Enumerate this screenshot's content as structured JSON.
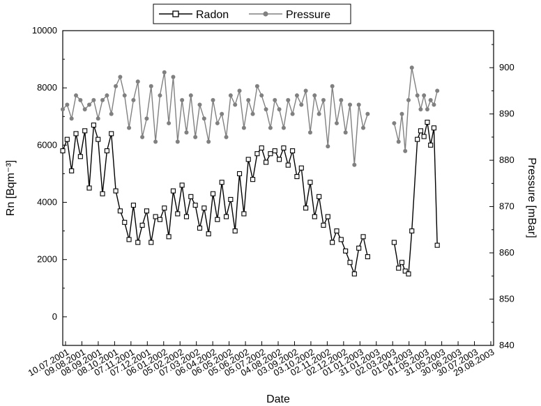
{
  "chart_data": {
    "type": "line",
    "xlabel": "Date",
    "ylabel": "Rn [Bqm⁻³]",
    "ylabel_right": "Pressure [mBar]",
    "ylim": [
      -1000,
      10000
    ],
    "ylim_right": [
      840,
      908
    ],
    "y_ticks": [
      "0",
      "2000",
      "4000",
      "6000",
      "8000",
      "10000"
    ],
    "y_right_ticks": [
      "840",
      "850",
      "860",
      "870",
      "880",
      "890",
      "900"
    ],
    "x_tick_labels": [
      "10.07.2001",
      "09.08.2001",
      "08.09.2001",
      "08.10.2001",
      "07.11.2001",
      "07.12.2001",
      "06.01.2002",
      "05.02.2002",
      "07.03.2002",
      "06.04.2002",
      "06.05.2002",
      "05.06.2002",
      "05.07.2002",
      "04.08.2002",
      "03.09.2002",
      "03.10.2002",
      "02.11.2002",
      "02.12.2002",
      "01.01.2003",
      "31.01.2003",
      "02.03.2003",
      "01.04.2003",
      "01.05.2003",
      "31.05.2003",
      "30.06.2003",
      "30.07.2003",
      "29.08.2003"
    ],
    "x_range_days": [
      0,
      780
    ],
    "legend_position": "top-center",
    "series": [
      {
        "name": "Radon",
        "axis": "left",
        "color": "#000000",
        "marker": "open-square",
        "day": [
          0,
          8,
          16,
          24,
          32,
          40,
          48,
          56,
          64,
          72,
          80,
          88,
          96,
          104,
          112,
          120,
          128,
          136,
          144,
          152,
          160,
          168,
          176,
          184,
          192,
          200,
          208,
          216,
          224,
          232,
          240,
          248,
          256,
          264,
          272,
          280,
          288,
          296,
          304,
          312,
          320,
          328,
          336,
          344,
          352,
          360,
          368,
          376,
          384,
          392,
          400,
          408,
          416,
          424,
          432,
          440,
          448,
          456,
          464,
          472,
          480,
          488,
          496,
          504,
          512,
          520,
          528,
          536,
          544,
          552,
          600,
          608,
          614,
          620,
          626,
          632,
          642,
          648,
          654,
          660,
          666,
          672,
          678
        ],
        "values": [
          5800,
          6200,
          5100,
          6400,
          5600,
          6500,
          4500,
          6700,
          6200,
          4300,
          5800,
          6400,
          4400,
          3700,
          3300,
          2700,
          3900,
          2600,
          3200,
          3700,
          2600,
          3500,
          3400,
          3800,
          2800,
          4400,
          3600,
          4600,
          3500,
          4200,
          3900,
          3100,
          3800,
          2900,
          4300,
          3400,
          4700,
          3500,
          4100,
          3000,
          5000,
          3600,
          5500,
          4800,
          5700,
          5900,
          5400,
          5700,
          5800,
          5500,
          5900,
          5300,
          5800,
          4900,
          5200,
          3800,
          4700,
          3500,
          4200,
          3200,
          3500,
          2600,
          3000,
          2700,
          2300,
          1900,
          1500,
          2400,
          2800,
          2100,
          2600,
          1700,
          1900,
          1600,
          1500,
          3000,
          6200,
          6500,
          6300,
          6800,
          6000,
          6600,
          2500
        ]
      },
      {
        "name": "Pressure",
        "axis": "right",
        "color": "#808080",
        "marker": "filled-circle",
        "day": [
          0,
          8,
          16,
          24,
          32,
          40,
          48,
          56,
          64,
          72,
          80,
          88,
          96,
          104,
          112,
          120,
          128,
          136,
          144,
          152,
          160,
          168,
          176,
          184,
          192,
          200,
          208,
          216,
          224,
          232,
          240,
          248,
          256,
          264,
          272,
          280,
          288,
          296,
          304,
          312,
          320,
          328,
          336,
          344,
          352,
          360,
          368,
          376,
          384,
          392,
          400,
          408,
          416,
          424,
          432,
          440,
          448,
          456,
          464,
          472,
          480,
          488,
          496,
          504,
          512,
          520,
          528,
          536,
          544,
          552,
          600,
          608,
          614,
          620,
          626,
          632,
          642,
          648,
          654,
          660,
          666,
          672,
          678
        ],
        "values": [
          891,
          892,
          889,
          894,
          893,
          891,
          892,
          893,
          889,
          893,
          894,
          890,
          896,
          898,
          894,
          887,
          893,
          897,
          885,
          889,
          896,
          884,
          894,
          899,
          888,
          898,
          884,
          893,
          886,
          894,
          885,
          892,
          889,
          884,
          893,
          888,
          890,
          885,
          894,
          892,
          895,
          887,
          893,
          890,
          896,
          894,
          891,
          887,
          893,
          891,
          887,
          893,
          890,
          894,
          892,
          895,
          886,
          894,
          890,
          893,
          883,
          896,
          888,
          893,
          886,
          892,
          879,
          892,
          887,
          890,
          888,
          884,
          890,
          882,
          893,
          900,
          894,
          891,
          894,
          891,
          893,
          892,
          895
        ]
      }
    ]
  }
}
